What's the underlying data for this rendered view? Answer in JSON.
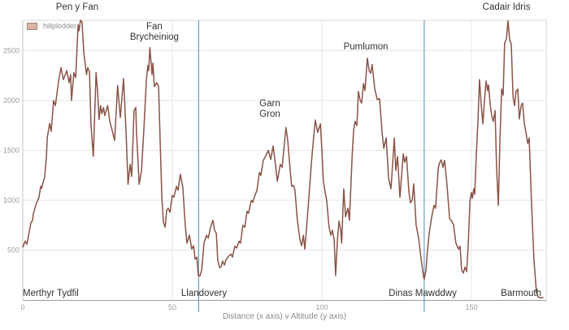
{
  "legend": {
    "label": "hillplodder",
    "swatch_fill": "#d9b4a7",
    "swatch_border": "#a5816f"
  },
  "chart_data": {
    "type": "line",
    "title": "",
    "xlabel": "Distance (x axis) v Altitude (y axis)",
    "ylabel": "",
    "series_name": "hillplodder",
    "line_color": "#8a5347",
    "marker_line_color": "#6d9dc5",
    "grid_color": "#e6e6e6",
    "axis_color": "#9b9b9b",
    "border_color": "#d9d9d9",
    "tick_color": "#9b9b9b",
    "xlim": [
      0,
      175
    ],
    "ylim": [
      0,
      2805
    ],
    "x_ticks": [
      0,
      50,
      100,
      150
    ],
    "y_ticks": [
      500,
      1000,
      1500,
      2000,
      2500
    ],
    "grid": true,
    "legend_position": "top-left",
    "marker_lines_x": [
      58.8,
      134.2
    ],
    "annotations": [
      {
        "lines": [
          "Pen y Fan"
        ],
        "x": 18.2,
        "y": 3,
        "anchor": "middle"
      },
      {
        "lines": [
          "Fan",
          "Brycheiniog"
        ],
        "x": 44.0,
        "y": 27,
        "anchor": "middle"
      },
      {
        "lines": [
          "Garn",
          "Gron"
        ],
        "x": 82.6,
        "y": 122,
        "anchor": "middle"
      },
      {
        "lines": [
          "Pumlumon"
        ],
        "x": 114.7,
        "y": 52,
        "anchor": "middle"
      },
      {
        "lines": [
          "Cadair Idris"
        ],
        "x": 161.7,
        "y": 3,
        "anchor": "middle"
      },
      {
        "lines": [
          "Merthyr Tydfil"
        ],
        "x": 0,
        "y": 356,
        "anchor": "start"
      },
      {
        "lines": [
          "Llandovery"
        ],
        "x": 60.6,
        "y": 356,
        "anchor": "middle"
      },
      {
        "lines": [
          "Dinas Mawddwy"
        ],
        "x": 133.7,
        "y": 356,
        "anchor": "middle"
      },
      {
        "lines": [
          "Barmouth"
        ],
        "x": 166.6,
        "y": 356,
        "anchor": "middle"
      }
    ],
    "points": [
      [
        0,
        530
      ],
      [
        0.8,
        590
      ],
      [
        1.4,
        560
      ],
      [
        2.7,
        770
      ],
      [
        3.3,
        800
      ],
      [
        3.5,
        860
      ],
      [
        4.6,
        975
      ],
      [
        4.9,
        990
      ],
      [
        5.4,
        1030
      ],
      [
        6,
        1140
      ],
      [
        6.3,
        1120
      ],
      [
        6.8,
        1180
      ],
      [
        7.3,
        1230
      ],
      [
        7.9,
        1440
      ],
      [
        8.2,
        1630
      ],
      [
        9,
        1770
      ],
      [
        9.5,
        1690
      ],
      [
        10.3,
        2000
      ],
      [
        10.9,
        1950
      ],
      [
        12,
        2200
      ],
      [
        12.8,
        2330
      ],
      [
        13.6,
        2210
      ],
      [
        14.7,
        2300
      ],
      [
        15.5,
        2180
      ],
      [
        16,
        2260
      ],
      [
        16.3,
        2000
      ],
      [
        17.1,
        2280
      ],
      [
        17.7,
        2230
      ],
      [
        18.5,
        2760
      ],
      [
        18.8,
        2700
      ],
      [
        19.3,
        2805
      ],
      [
        19.8,
        2790
      ],
      [
        20.4,
        2480
      ],
      [
        20.9,
        2360
      ],
      [
        21.3,
        2260
      ],
      [
        21.7,
        2330
      ],
      [
        22.3,
        2290
      ],
      [
        22.8,
        1760
      ],
      [
        23.6,
        1440
      ],
      [
        24.5,
        2280
      ],
      [
        25,
        2100
      ],
      [
        25.5,
        1810
      ],
      [
        26,
        1950
      ],
      [
        26.4,
        1870
      ],
      [
        27,
        1930
      ],
      [
        27.4,
        1850
      ],
      [
        28.4,
        1950
      ],
      [
        29.1,
        1790
      ],
      [
        29.9,
        1700
      ],
      [
        30.7,
        1600
      ],
      [
        31.7,
        2150
      ],
      [
        32.6,
        1830
      ],
      [
        33.7,
        2220
      ],
      [
        34.5,
        1700
      ],
      [
        35.2,
        1160
      ],
      [
        35.9,
        1360
      ],
      [
        36.4,
        1240
      ],
      [
        37.2,
        1900
      ],
      [
        37.8,
        1930
      ],
      [
        38,
        1710
      ],
      [
        38.9,
        1160
      ],
      [
        39.7,
        1300
      ],
      [
        40.5,
        1710
      ],
      [
        41.3,
        2195
      ],
      [
        41.8,
        2350
      ],
      [
        42.1,
        2300
      ],
      [
        42.5,
        2530
      ],
      [
        43.2,
        2260
      ],
      [
        43.5,
        2375
      ],
      [
        44,
        2140
      ],
      [
        44.8,
        2180
      ],
      [
        45.4,
        2140
      ],
      [
        45.9,
        1630
      ],
      [
        46.5,
        1030
      ],
      [
        47,
        780
      ],
      [
        47.6,
        730
      ],
      [
        48.1,
        900
      ],
      [
        48.6,
        920
      ],
      [
        49.2,
        880
      ],
      [
        50,
        1050
      ],
      [
        50.5,
        1030
      ],
      [
        51.4,
        1140
      ],
      [
        51.9,
        1100
      ],
      [
        52.7,
        1260
      ],
      [
        53.5,
        1130
      ],
      [
        54.3,
        760
      ],
      [
        54.9,
        570
      ],
      [
        55.7,
        650
      ],
      [
        56.5,
        510
      ],
      [
        57.1,
        545
      ],
      [
        57.6,
        410
      ],
      [
        58.2,
        430
      ],
      [
        58.7,
        245
      ],
      [
        59.2,
        240
      ],
      [
        59.8,
        300
      ],
      [
        60.6,
        570
      ],
      [
        61.4,
        650
      ],
      [
        62,
        620
      ],
      [
        62.8,
        730
      ],
      [
        63.6,
        800
      ],
      [
        64.1,
        700
      ],
      [
        64.7,
        670
      ],
      [
        65.2,
        400
      ],
      [
        65.8,
        325
      ],
      [
        66.3,
        330
      ],
      [
        66.8,
        390
      ],
      [
        67.4,
        350
      ],
      [
        67.9,
        400
      ],
      [
        68.8,
        440
      ],
      [
        69.6,
        460
      ],
      [
        70.1,
        430
      ],
      [
        70.9,
        540
      ],
      [
        71.5,
        520
      ],
      [
        72.3,
        590
      ],
      [
        72.8,
        570
      ],
      [
        73.6,
        750
      ],
      [
        74.2,
        730
      ],
      [
        75,
        890
      ],
      [
        75.5,
        870
      ],
      [
        76.4,
        1000
      ],
      [
        76.9,
        980
      ],
      [
        77.4,
        1030
      ],
      [
        78.3,
        1100
      ],
      [
        79.1,
        1280
      ],
      [
        79.6,
        1250
      ],
      [
        80.4,
        1400
      ],
      [
        81.3,
        1450
      ],
      [
        82.1,
        1500
      ],
      [
        82.9,
        1410
      ],
      [
        83.7,
        1545
      ],
      [
        84.5,
        1350
      ],
      [
        85.1,
        1190
      ],
      [
        86.1,
        1360
      ],
      [
        86.7,
        1330
      ],
      [
        87.5,
        1580
      ],
      [
        88,
        1730
      ],
      [
        88.6,
        1600
      ],
      [
        89.4,
        1300
      ],
      [
        89.9,
        1140
      ],
      [
        90.5,
        1150
      ],
      [
        91,
        1100
      ],
      [
        91.8,
        800
      ],
      [
        92.7,
        600
      ],
      [
        93.2,
        545
      ],
      [
        93.8,
        650
      ],
      [
        94.3,
        510
      ],
      [
        94.8,
        700
      ],
      [
        95.7,
        1050
      ],
      [
        96.5,
        1380
      ],
      [
        97.3,
        1650
      ],
      [
        97.8,
        1805
      ],
      [
        98.6,
        1680
      ],
      [
        99.5,
        1765
      ],
      [
        100,
        1500
      ],
      [
        100.5,
        1195
      ],
      [
        101.1,
        1080
      ],
      [
        101.6,
        1000
      ],
      [
        102.4,
        730
      ],
      [
        103,
        650
      ],
      [
        103.5,
        700
      ],
      [
        104.1,
        600
      ],
      [
        104.6,
        245
      ],
      [
        105.2,
        600
      ],
      [
        105.7,
        790
      ],
      [
        106.3,
        700
      ],
      [
        106.6,
        570
      ],
      [
        107.3,
        1115
      ],
      [
        107.9,
        835
      ],
      [
        108.7,
        920
      ],
      [
        109.2,
        800
      ],
      [
        110.1,
        1440
      ],
      [
        110.6,
        1700
      ],
      [
        111.1,
        1790
      ],
      [
        111.7,
        1750
      ],
      [
        112.2,
        2090
      ],
      [
        112.8,
        2000
      ],
      [
        113.3,
        1975
      ],
      [
        113.9,
        2170
      ],
      [
        114.4,
        2100
      ],
      [
        115.2,
        2425
      ],
      [
        115.8,
        2300
      ],
      [
        116.3,
        2275
      ],
      [
        116.8,
        2360
      ],
      [
        117.7,
        2115
      ],
      [
        118.5,
        2010
      ],
      [
        119.3,
        2020
      ],
      [
        120.1,
        1685
      ],
      [
        120.7,
        1520
      ],
      [
        121.5,
        1625
      ],
      [
        122.3,
        1220
      ],
      [
        123.1,
        1115
      ],
      [
        124.2,
        1625
      ],
      [
        124.7,
        1300
      ],
      [
        125.3,
        1440
      ],
      [
        126.1,
        1030
      ],
      [
        127.2,
        1465
      ],
      [
        127.7,
        1380
      ],
      [
        128.3,
        1440
      ],
      [
        129.1,
        1080
      ],
      [
        129.6,
        975
      ],
      [
        130.2,
        1000
      ],
      [
        130.7,
        1165
      ],
      [
        131.5,
        755
      ],
      [
        132.3,
        625
      ],
      [
        133.2,
        405
      ],
      [
        134,
        230
      ],
      [
        134.2,
        210
      ],
      [
        134.8,
        300
      ],
      [
        135.3,
        500
      ],
      [
        135.9,
        675
      ],
      [
        136.7,
        835
      ],
      [
        137.5,
        950
      ],
      [
        138,
        920
      ],
      [
        138.9,
        1325
      ],
      [
        139.4,
        1380
      ],
      [
        139.9,
        1405
      ],
      [
        140.5,
        1330
      ],
      [
        141,
        1400
      ],
      [
        141.8,
        1165
      ],
      [
        142.7,
        815
      ],
      [
        143.2,
        800
      ],
      [
        144,
        755
      ],
      [
        144.8,
        570
      ],
      [
        145.7,
        510
      ],
      [
        146.2,
        540
      ],
      [
        146.7,
        300
      ],
      [
        147.3,
        270
      ],
      [
        147.8,
        330
      ],
      [
        148.4,
        285
      ],
      [
        148.9,
        545
      ],
      [
        149.5,
        1000
      ],
      [
        150,
        1080
      ],
      [
        150.3,
        1020
      ],
      [
        150.8,
        1115
      ],
      [
        151.1,
        1060
      ],
      [
        151.6,
        1440
      ],
      [
        152.2,
        1815
      ],
      [
        152.7,
        2210
      ],
      [
        153.3,
        1950
      ],
      [
        153.8,
        1765
      ],
      [
        154.3,
        1975
      ],
      [
        154.9,
        2195
      ],
      [
        155.4,
        2100
      ],
      [
        155.7,
        2155
      ],
      [
        156.3,
        1950
      ],
      [
        156.8,
        1845
      ],
      [
        157.3,
        1790
      ],
      [
        157.9,
        1900
      ],
      [
        158.4,
        1325
      ],
      [
        159,
        950
      ],
      [
        159.5,
        1600
      ],
      [
        160.1,
        2115
      ],
      [
        160.6,
        2055
      ],
      [
        161.1,
        2575
      ],
      [
        161.7,
        2620
      ],
      [
        162.2,
        2800
      ],
      [
        162.8,
        2600
      ],
      [
        163.3,
        2575
      ],
      [
        163.9,
        2035
      ],
      [
        164.4,
        1950
      ],
      [
        164.9,
        2090
      ],
      [
        165.5,
        2115
      ],
      [
        166,
        1815
      ],
      [
        166.6,
        1950
      ],
      [
        167.1,
        1975
      ],
      [
        167.7,
        1765
      ],
      [
        168.2,
        1685
      ],
      [
        168.8,
        1570
      ],
      [
        169.3,
        1625
      ],
      [
        170.1,
        950
      ],
      [
        170.9,
        405
      ],
      [
        171.7,
        80
      ],
      [
        172.3,
        30
      ],
      [
        173.1,
        20
      ],
      [
        173.9,
        25
      ]
    ]
  }
}
